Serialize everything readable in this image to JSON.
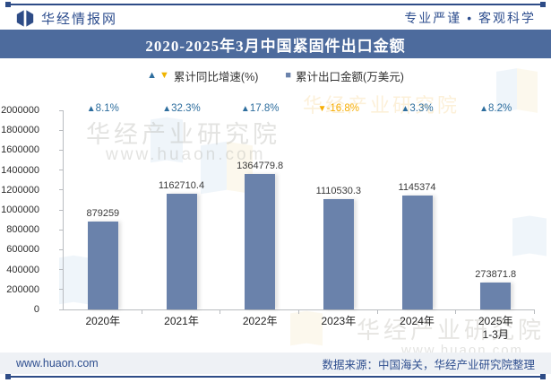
{
  "header": {
    "brand": "华经情报网",
    "slogan": "专业严谨 • 客观科学"
  },
  "title": "2020-2025年3月中国紧固件出口金额",
  "legend": {
    "growth_label": "累计同比增速(%)",
    "amount_label": "累计出口金额(万美元)"
  },
  "icons": {
    "up_triangle": "▲",
    "down_triangle": "▼",
    "legend_square": "■"
  },
  "colors": {
    "navy": "#2e4c87",
    "title_band": "#4d6b9d",
    "bar": "#6a82ab",
    "growth_up": "#2e6e9e",
    "growth_down": "#f7ad00",
    "axis": "#b9bcc0",
    "footer_bg": "#eef1f5"
  },
  "chart_data": {
    "type": "bar",
    "title": "2020-2025年3月中国紧固件出口金额",
    "categories": [
      "2020年",
      "2021年",
      "2022年",
      "2023年",
      "2024年",
      "2025年\n1-3月"
    ],
    "series": [
      {
        "name": "累计出口金额(万美元)",
        "values": [
          879259,
          1162710.4,
          1364779.8,
          1110530.3,
          1145374,
          273871.8
        ]
      },
      {
        "name": "累计同比增速(%)",
        "values": [
          8.1,
          32.3,
          17.8,
          -16.8,
          3.3,
          8.2
        ]
      }
    ],
    "value_labels": [
      "879259",
      "1162710.4",
      "1364779.8",
      "1110530.3",
      "1145374",
      "273871.8"
    ],
    "growth_labels": [
      "8.1%",
      "32.3%",
      "17.8%",
      "-16.8%",
      "3.3%",
      "8.2%"
    ],
    "ylabel": "",
    "xlabel": "",
    "ylim": [
      0,
      2000000
    ],
    "ytick_step": 200000,
    "yticks": [
      "2000000",
      "1800000",
      "1600000",
      "1400000",
      "1200000",
      "1000000",
      "800000",
      "600000",
      "400000",
      "200000",
      "0"
    ],
    "grid": false,
    "legend_position": "top"
  },
  "watermark": {
    "text1": "华经产业研究院",
    "text2": "www.huaon.com"
  },
  "footer": {
    "site": "www.huaon.com",
    "source": "数据来源：中国海关，华经产业研究院整理"
  }
}
